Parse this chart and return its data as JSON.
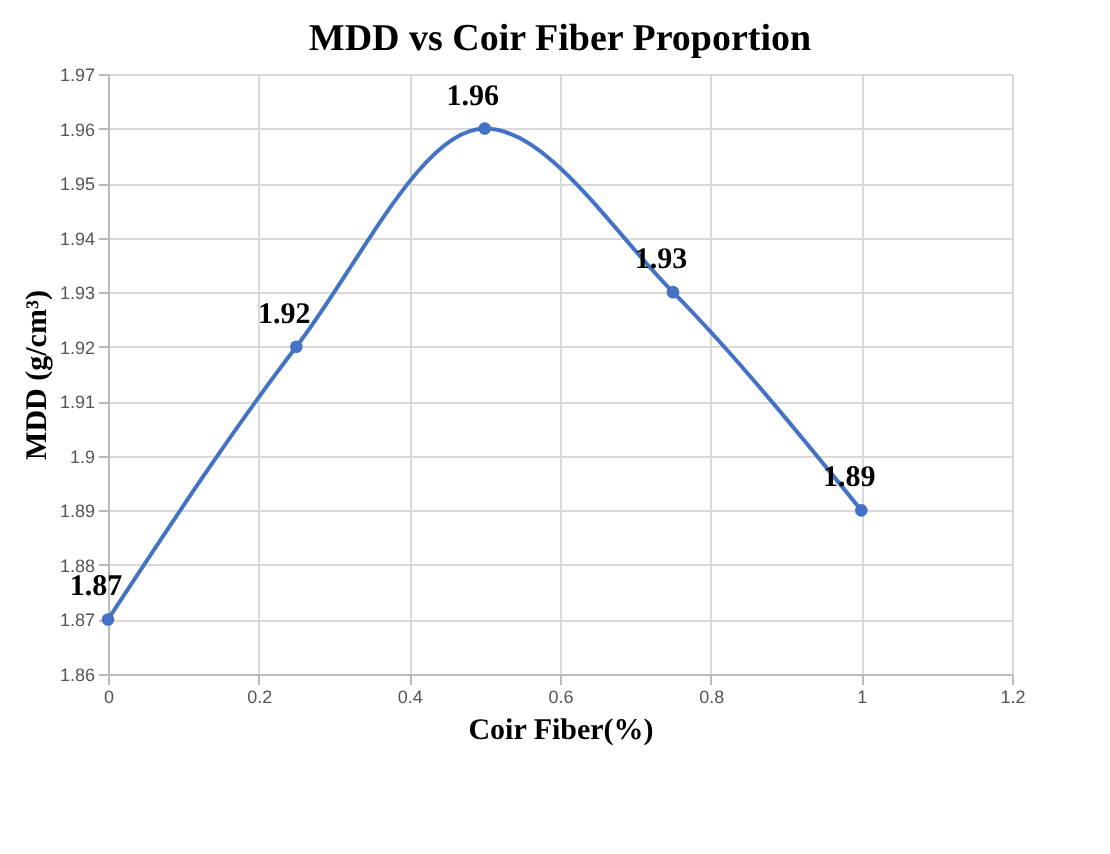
{
  "chart_data": {
    "type": "line",
    "title": "MDD vs Coir Fiber Proportion",
    "xlabel": "Coir Fiber(%)",
    "ylabel": "MDD (g/cm³)",
    "x": [
      0,
      0.25,
      0.5,
      0.75,
      1
    ],
    "series": [
      {
        "color": "#4472c4",
        "values": [
          1.87,
          1.92,
          1.96,
          1.93,
          1.89
        ]
      }
    ],
    "xlim": [
      0,
      1.2
    ],
    "xticks": [
      0,
      0.2,
      0.4,
      0.6,
      0.8,
      1,
      1.2
    ],
    "ylim": [
      1.86,
      1.97
    ],
    "yticks": [
      1.86,
      1.87,
      1.88,
      1.89,
      1.9,
      1.91,
      1.92,
      1.93,
      1.94,
      1.95,
      1.96,
      1.97
    ],
    "grid": true,
    "marker": "circle",
    "line_style": "solid",
    "data_labels": true
  }
}
